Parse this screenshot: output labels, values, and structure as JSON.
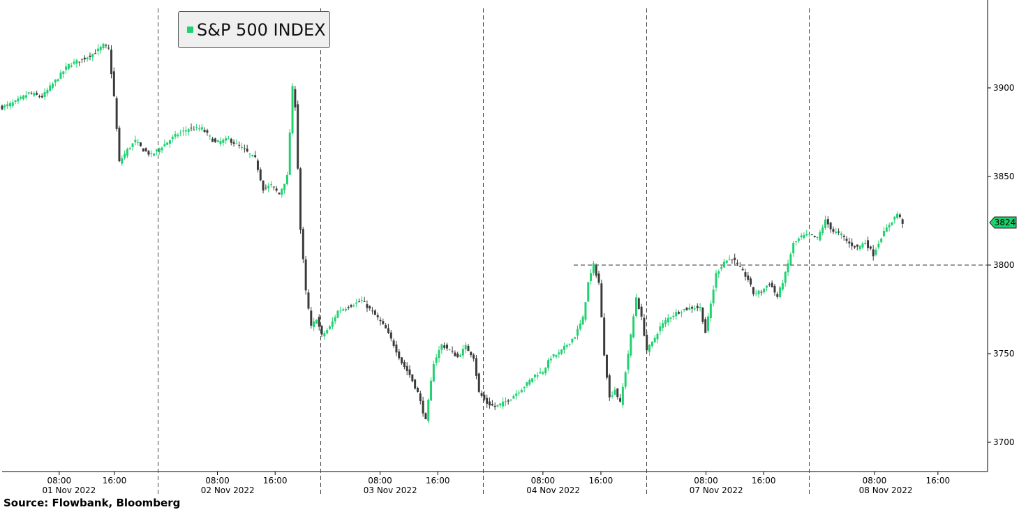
{
  "chart_data": {
    "type": "candlestick",
    "legend": {
      "label": "S&P 500 INDEX",
      "color": "#1ed26e"
    },
    "colors": {
      "up": "#1ed26e",
      "down": "#3a3a3a"
    },
    "ylim": [
      3677,
      3945
    ],
    "y_ticks": [
      3700,
      3750,
      3800,
      3850,
      3900
    ],
    "x_time_ticks": [
      "08:00",
      "16:00"
    ],
    "days": [
      "01 Nov 2022",
      "02 Nov 2022",
      "03 Nov 2022",
      "04 Nov 2022",
      "07 Nov 2022",
      "08 Nov 2022"
    ],
    "reference_level": 3800,
    "last_value": 3824,
    "last_label": "3824",
    "anchors": [
      [
        0,
        3889
      ],
      [
        5,
        3892
      ],
      [
        10,
        3897
      ],
      [
        15,
        3895
      ],
      [
        20,
        3904
      ],
      [
        25,
        3913
      ],
      [
        30,
        3916
      ],
      [
        35,
        3920
      ],
      [
        38,
        3924
      ],
      [
        40,
        3922
      ],
      [
        42,
        3895
      ],
      [
        44,
        3858
      ],
      [
        47,
        3865
      ],
      [
        50,
        3870
      ],
      [
        53,
        3865
      ],
      [
        56,
        3862
      ],
      [
        60,
        3867
      ],
      [
        65,
        3873
      ],
      [
        70,
        3877
      ],
      [
        75,
        3877
      ],
      [
        80,
        3869
      ],
      [
        85,
        3871
      ],
      [
        90,
        3866
      ],
      [
        95,
        3860
      ],
      [
        98,
        3843
      ],
      [
        101,
        3845
      ],
      [
        104,
        3840
      ],
      [
        107,
        3850
      ],
      [
        109,
        3900
      ],
      [
        110,
        3890
      ],
      [
        112,
        3820
      ],
      [
        114,
        3785
      ],
      [
        116,
        3765
      ],
      [
        118,
        3770
      ],
      [
        120,
        3760
      ],
      [
        123,
        3765
      ],
      [
        126,
        3774
      ],
      [
        129,
        3776
      ],
      [
        132,
        3778
      ],
      [
        135,
        3780
      ],
      [
        138,
        3775
      ],
      [
        141,
        3770
      ],
      [
        144,
        3764
      ],
      [
        147,
        3755
      ],
      [
        150,
        3745
      ],
      [
        153,
        3738
      ],
      [
        156,
        3728
      ],
      [
        159,
        3712
      ],
      [
        162,
        3745
      ],
      [
        165,
        3755
      ],
      [
        168,
        3752
      ],
      [
        171,
        3748
      ],
      [
        174,
        3754
      ],
      [
        177,
        3748
      ],
      [
        179,
        3728
      ],
      [
        182,
        3722
      ],
      [
        185,
        3720
      ],
      [
        188,
        3722
      ],
      [
        191,
        3725
      ],
      [
        194,
        3729
      ],
      [
        197,
        3733
      ],
      [
        200,
        3738
      ],
      [
        203,
        3740
      ],
      [
        206,
        3748
      ],
      [
        209,
        3750
      ],
      [
        212,
        3755
      ],
      [
        215,
        3760
      ],
      [
        218,
        3770
      ],
      [
        220,
        3790
      ],
      [
        222,
        3800
      ],
      [
        224,
        3790
      ],
      [
        226,
        3750
      ],
      [
        228,
        3725
      ],
      [
        230,
        3730
      ],
      [
        232,
        3722
      ],
      [
        234,
        3740
      ],
      [
        236,
        3760
      ],
      [
        238,
        3782
      ],
      [
        240,
        3770
      ],
      [
        242,
        3752
      ],
      [
        244,
        3756
      ],
      [
        247,
        3765
      ],
      [
        250,
        3770
      ],
      [
        253,
        3773
      ],
      [
        256,
        3775
      ],
      [
        259,
        3776
      ],
      [
        262,
        3776
      ],
      [
        264,
        3762
      ],
      [
        266,
        3778
      ],
      [
        268,
        3795
      ],
      [
        271,
        3802
      ],
      [
        274,
        3804
      ],
      [
        277,
        3798
      ],
      [
        280,
        3792
      ],
      [
        282,
        3784
      ],
      [
        285,
        3785
      ],
      [
        288,
        3790
      ],
      [
        291,
        3782
      ],
      [
        294,
        3795
      ],
      [
        297,
        3812
      ],
      [
        300,
        3816
      ],
      [
        303,
        3817
      ],
      [
        306,
        3815
      ],
      [
        309,
        3825
      ],
      [
        312,
        3819
      ],
      [
        315,
        3817
      ],
      [
        318,
        3812
      ],
      [
        321,
        3810
      ],
      [
        324,
        3813
      ],
      [
        327,
        3806
      ],
      [
        330,
        3816
      ],
      [
        333,
        3823
      ],
      [
        336,
        3829
      ],
      [
        338,
        3824
      ]
    ]
  },
  "source": {
    "label": "Source:",
    "text": "Flowbank, Bloomberg"
  }
}
